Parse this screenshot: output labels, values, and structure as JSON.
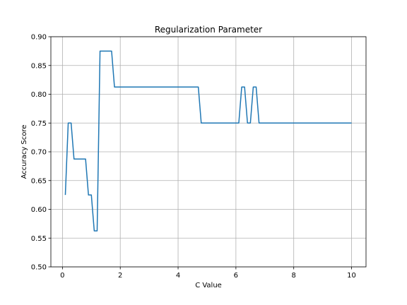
{
  "chart_data": {
    "type": "line",
    "title": "Regularization Parameter",
    "xlabel": "C Value",
    "ylabel": "Accuracy Score",
    "xlim": [
      -0.4,
      10.5
    ],
    "ylim": [
      0.5,
      0.9
    ],
    "xticks": [
      0,
      2,
      4,
      6,
      8,
      10
    ],
    "yticks": [
      0.5,
      0.55,
      0.6,
      0.65,
      0.7,
      0.75,
      0.8,
      0.85,
      0.9
    ],
    "ytick_labels": [
      "0.50",
      "0.55",
      "0.60",
      "0.65",
      "0.70",
      "0.75",
      "0.80",
      "0.85",
      "0.90"
    ],
    "grid": true,
    "series": [
      {
        "color": "#1f77b4",
        "x": [
          0.1,
          0.2,
          0.3,
          0.4,
          0.5,
          0.6,
          0.7,
          0.8,
          0.9,
          1.0,
          1.1,
          1.2,
          1.3,
          1.4,
          1.5,
          1.6,
          1.7,
          1.8,
          4.7,
          4.8,
          6.1,
          6.2,
          6.3,
          6.4,
          6.5,
          6.6,
          6.7,
          6.8,
          6.9,
          10.0
        ],
        "y": [
          0.625,
          0.75,
          0.75,
          0.6875,
          0.6875,
          0.6875,
          0.6875,
          0.6875,
          0.625,
          0.625,
          0.5625,
          0.5625,
          0.875,
          0.875,
          0.875,
          0.875,
          0.875,
          0.8125,
          0.8125,
          0.75,
          0.75,
          0.8125,
          0.8125,
          0.75,
          0.75,
          0.8125,
          0.8125,
          0.75,
          0.75,
          0.75
        ]
      }
    ]
  }
}
